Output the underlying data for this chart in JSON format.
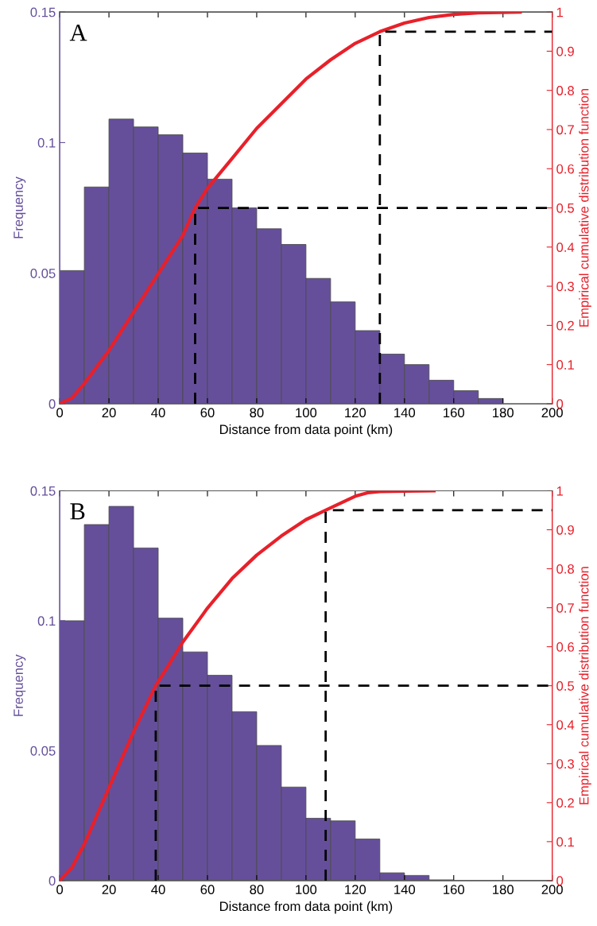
{
  "chart_data": [
    {
      "type": "histogram",
      "title": "A",
      "xlabel": "Distance from data point (km)",
      "ylabel": "Frequency",
      "y2label": "Empirical cumulative distribution function",
      "bins": [
        0,
        10,
        20,
        30,
        40,
        50,
        60,
        70,
        80,
        90,
        100,
        110,
        120,
        130,
        140,
        150,
        160,
        170,
        180,
        190,
        200
      ],
      "series": [
        {
          "color": "#654f9b",
          "values": [
            0.051,
            0.083,
            0.109,
            0.106,
            0.103,
            0.096,
            0.086,
            0.075,
            0.067,
            0.061,
            0.048,
            0.039,
            0.028,
            0.019,
            0.015,
            0.009,
            0.005,
            0.002,
            0,
            0
          ]
        },
        {
          "type": "line",
          "axis": "y2",
          "color": "#e8202a",
          "x": [
            0,
            5,
            10,
            20,
            30,
            40,
            50,
            55,
            60,
            70,
            80,
            90,
            100,
            110,
            120,
            130,
            140,
            150,
            160,
            170,
            187
          ],
          "values": [
            0,
            0.015,
            0.052,
            0.136,
            0.234,
            0.332,
            0.43,
            0.5,
            0.55,
            0.626,
            0.703,
            0.766,
            0.829,
            0.878,
            0.92,
            0.95,
            0.972,
            0.986,
            0.994,
            0.998,
            1.0
          ]
        },
        {
          "type": "line",
          "axis": "y2",
          "color": "#000000",
          "line_style": "dashed",
          "x": [
            55,
            55,
            200
          ],
          "values": [
            0,
            0.5,
            0.5
          ]
        },
        {
          "type": "line",
          "axis": "y2",
          "color": "#000000",
          "line_style": "dashed",
          "x": [
            130,
            130,
            200
          ],
          "values": [
            0,
            0.95,
            0.95
          ]
        }
      ],
      "xlim": [
        0,
        200
      ],
      "xticks": [
        0,
        20,
        40,
        60,
        80,
        100,
        120,
        140,
        160,
        180,
        200
      ],
      "ylim": [
        0,
        0.15
      ],
      "yticks": [
        0,
        0.05,
        0.1,
        0.15
      ],
      "y2lim": [
        0,
        1
      ],
      "y2ticks": [
        0,
        0.1,
        0.2,
        0.3,
        0.4,
        0.5,
        0.6,
        0.7,
        0.8,
        0.9,
        1
      ],
      "grid": false
    },
    {
      "type": "histogram",
      "title": "B",
      "xlabel": "Distance from data point (km)",
      "ylabel": "Frequency",
      "y2label": "Empirical cumulative distribution function",
      "bins": [
        0,
        10,
        20,
        30,
        40,
        50,
        60,
        70,
        80,
        90,
        100,
        110,
        120,
        130,
        140,
        150,
        160,
        170,
        180,
        190,
        200
      ],
      "series": [
        {
          "color": "#654f9b",
          "values": [
            0.1,
            0.137,
            0.144,
            0.128,
            0.101,
            0.088,
            0.079,
            0.065,
            0.052,
            0.036,
            0.024,
            0.023,
            0.016,
            0.003,
            0.002,
            0.0003,
            0,
            0,
            0,
            0
          ]
        },
        {
          "type": "line",
          "axis": "y2",
          "color": "#e8202a",
          "x": [
            0,
            5,
            10,
            20,
            30,
            39,
            50,
            60,
            70,
            80,
            90,
            100,
            108,
            115,
            120,
            125,
            130,
            152
          ],
          "values": [
            0,
            0.034,
            0.094,
            0.238,
            0.382,
            0.5,
            0.612,
            0.699,
            0.775,
            0.835,
            0.884,
            0.926,
            0.95,
            0.971,
            0.986,
            0.995,
            0.998,
            1.0
          ]
        },
        {
          "type": "line",
          "axis": "y2",
          "color": "#000000",
          "line_style": "dashed",
          "x": [
            39,
            39,
            200
          ],
          "values": [
            0,
            0.5,
            0.5
          ]
        },
        {
          "type": "line",
          "axis": "y2",
          "color": "#000000",
          "line_style": "dashed",
          "x": [
            108,
            108,
            200
          ],
          "values": [
            0,
            0.95,
            0.95
          ]
        }
      ],
      "xlim": [
        0,
        200
      ],
      "xticks": [
        0,
        20,
        40,
        60,
        80,
        100,
        120,
        140,
        160,
        180,
        200
      ],
      "ylim": [
        0,
        0.15
      ],
      "yticks": [
        0,
        0.05,
        0.1,
        0.15
      ],
      "y2lim": [
        0,
        1
      ],
      "y2ticks": [
        0,
        0.1,
        0.2,
        0.3,
        0.4,
        0.5,
        0.6,
        0.7,
        0.8,
        0.9,
        1
      ],
      "grid": false
    }
  ]
}
